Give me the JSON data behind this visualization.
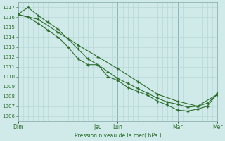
{
  "bg_color": "#d0eaea",
  "grid_color": "#b8d8d8",
  "line_color": "#2d6e2d",
  "marker_color": "#2d6e2d",
  "xlabel_text": "Pression niveau de la mer( hPa )",
  "ylim": [
    1005.5,
    1017.5
  ],
  "yticks": [
    1006,
    1007,
    1008,
    1009,
    1010,
    1011,
    1012,
    1013,
    1014,
    1015,
    1016,
    1017
  ],
  "day_labels": [
    "Dim",
    "Jeu",
    "Lun",
    "Mar",
    "Mer"
  ],
  "day_positions": [
    0,
    96,
    120,
    192,
    240
  ],
  "xlim": [
    0,
    240
  ],
  "minor_xtick_step": 6,
  "series1_x": [
    0,
    12,
    24,
    36,
    48,
    60,
    72,
    84,
    96,
    108,
    120,
    132,
    144,
    156,
    168,
    180,
    192,
    204,
    216,
    228,
    240
  ],
  "series1_y": [
    1016.3,
    1017.0,
    1016.2,
    1015.5,
    1014.8,
    1013.8,
    1012.8,
    1011.8,
    1011.2,
    1010.5,
    1009.8,
    1009.3,
    1008.8,
    1008.3,
    1007.8,
    1007.4,
    1007.2,
    1006.9,
    1007.0,
    1007.3,
    1008.2
  ],
  "series2_x": [
    0,
    12,
    24,
    36,
    48,
    60,
    72,
    84,
    96,
    108,
    120,
    132,
    144,
    156,
    168,
    180,
    192,
    204,
    216,
    228,
    240
  ],
  "series2_y": [
    1016.3,
    1016.0,
    1015.4,
    1014.7,
    1014.0,
    1013.0,
    1011.8,
    1011.2,
    1011.2,
    1010.0,
    1009.6,
    1008.9,
    1008.5,
    1008.1,
    1007.5,
    1007.1,
    1006.6,
    1006.5,
    1006.7,
    1007.0,
    1008.3
  ],
  "series3_x": [
    0,
    24,
    48,
    72,
    96,
    120,
    144,
    168,
    192,
    216,
    240
  ],
  "series3_y": [
    1016.3,
    1015.8,
    1014.5,
    1013.2,
    1012.0,
    1010.8,
    1009.5,
    1008.2,
    1007.5,
    1007.0,
    1008.2
  ]
}
